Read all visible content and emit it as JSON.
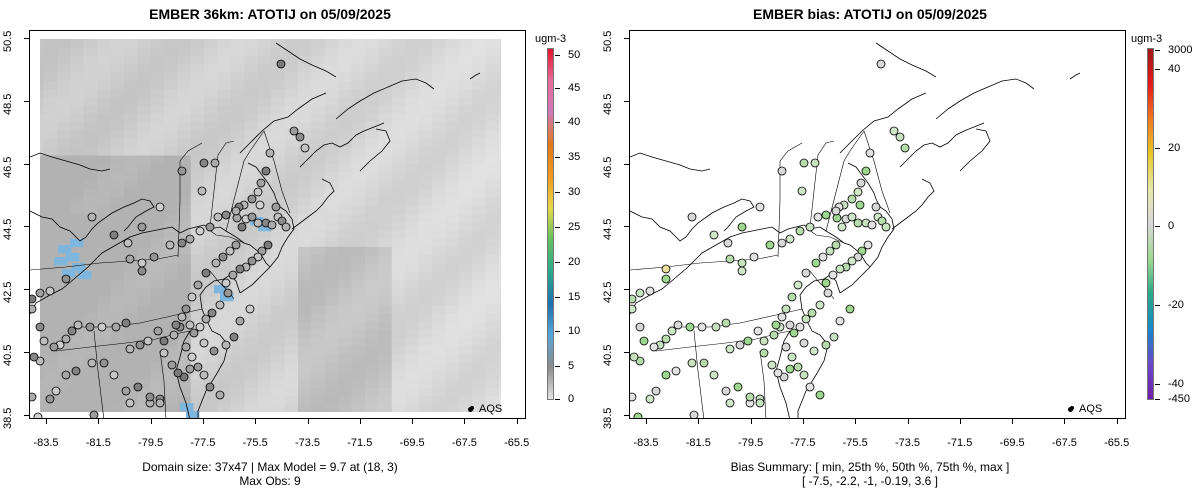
{
  "left": {
    "title": "EMBER 36km: ATOTIJ on 05/09/2025",
    "colorbar_title": "ugm-3",
    "colorbar_labels": [
      "50",
      "45",
      "40",
      "35",
      "30",
      "25",
      "20",
      "15",
      "10",
      "5",
      "0"
    ],
    "colorbar_colors": [
      "#e8142c",
      "#e46c9a",
      "#cf78b8",
      "#df7a1c",
      "#ef9a1e",
      "#e8d84a",
      "#62c05e",
      "#2ea88c",
      "#1e6fae",
      "#58a6d8",
      "#8c8c8c",
      "#e4e4e4"
    ],
    "legend": "AQS",
    "footer_line1": "Domain size: 37x47 | Max Model = 9.7 at (18, 3)",
    "footer_line2": "Max Obs: 9"
  },
  "right": {
    "title": "EMBER bias: ATOTIJ on 05/09/2025",
    "colorbar_title": "ugm-3",
    "colorbar_labels": [
      "3000",
      "40",
      "20",
      "0",
      "-20",
      "-40",
      "-450"
    ],
    "colorbar_colors": [
      "#a01818",
      "#e41818",
      "#ee7a20",
      "#e8c828",
      "#e8e8a8",
      "#d8d8d8",
      "#9ed890",
      "#2aa888",
      "#1888c8",
      "#6a48c8",
      "#7020a8"
    ],
    "legend": "AQS",
    "footer_line1": "Bias Summary: [ min, 25th %, 50th %, 75th %, max ]",
    "footer_line2": "[ -7.5,   -2.2,   -1,   -0.19,   3.6 ]"
  },
  "axes": {
    "x_ticks": [
      "-83.5",
      "-81.5",
      "-79.5",
      "-77.5",
      "-75.5",
      "-73.5",
      "-71.5",
      "-69.5",
      "-67.5",
      "-65.5"
    ],
    "y_ticks": [
      "50.5",
      "48.5",
      "46.5",
      "44.5",
      "42.5",
      "40.5",
      "38.5"
    ],
    "xlim": [
      -84.5,
      -65.0
    ],
    "ylim": [
      38.3,
      50.6
    ]
  }
}
